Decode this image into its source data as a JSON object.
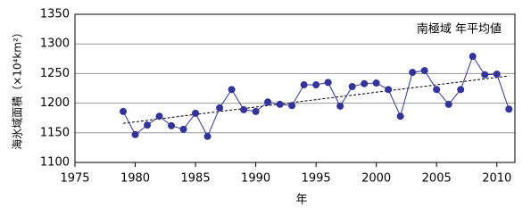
{
  "chart_data": {
    "type": "line",
    "title": "南極域 年平均値",
    "x_label": "年",
    "y_label": "海氷域面積（×10⁴km²）",
    "x": [
      1979,
      1980,
      1981,
      1982,
      1983,
      1984,
      1985,
      1986,
      1987,
      1988,
      1989,
      1990,
      1991,
      1992,
      1993,
      1994,
      1995,
      1996,
      1997,
      1998,
      1999,
      2000,
      2001,
      2002,
      2003,
      2004,
      2005,
      2006,
      2007,
      2008,
      2009,
      2010,
      2011
    ],
    "series": [
      {
        "color": "#33339a",
        "values": [
          1186,
          1147,
          1163,
          1178,
          1162,
          1156,
          1183,
          1144,
          1192,
          1223,
          1189,
          1186,
          1202,
          1198,
          1196,
          1231,
          1231,
          1235,
          1195,
          1228,
          1233,
          1234,
          1223,
          1178,
          1252,
          1255,
          1223,
          1198,
          1223,
          1279,
          1248,
          1249,
          1190
        ]
      }
    ],
    "trend": {
      "x": [
        1979,
        2011
      ],
      "values": [
        1166,
        1246
      ],
      "color": "#000000"
    },
    "xlim": [
      1975,
      2011.5
    ],
    "xticks": [
      1975,
      1980,
      1985,
      1990,
      1995,
      2000,
      2005,
      2010
    ],
    "ylim": [
      1100,
      1350
    ],
    "yticks": [
      1100,
      1150,
      1200,
      1250,
      1300,
      1350
    ],
    "grid": true
  }
}
